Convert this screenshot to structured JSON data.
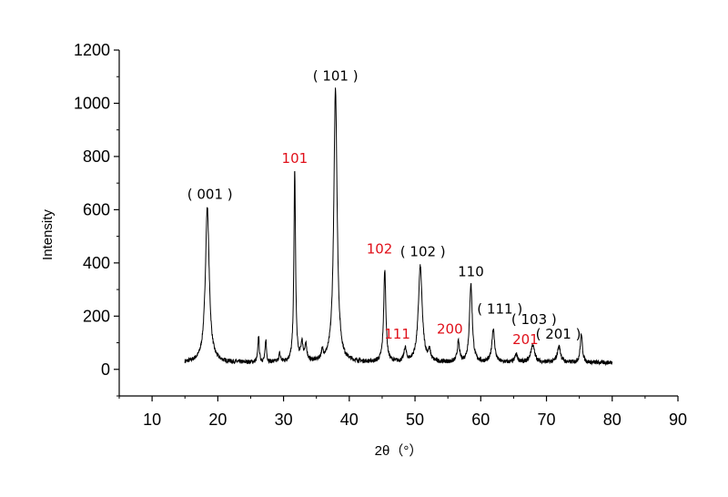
{
  "chart_data": {
    "type": "line",
    "title": "",
    "xlabel": "2θ（°）",
    "ylabel": "Intensity",
    "xlim": [
      5,
      90
    ],
    "ylim": [
      -100,
      1200
    ],
    "xticks": [
      10,
      20,
      30,
      40,
      50,
      60,
      70,
      80,
      90
    ],
    "yticks": [
      0,
      200,
      400,
      600,
      800,
      1000,
      1200
    ],
    "grid": false,
    "legend": "none",
    "line_color": "#000000",
    "background": 25,
    "baseline_range": [
      15,
      80
    ],
    "peaks": [
      {
        "x": 18.4,
        "y": 610,
        "w": 0.35
      },
      {
        "x": 26.2,
        "y": 125,
        "w": 0.12
      },
      {
        "x": 27.3,
        "y": 110,
        "w": 0.12
      },
      {
        "x": 29.4,
        "y": 55,
        "w": 0.15
      },
      {
        "x": 31.7,
        "y": 745,
        "w": 0.15
      },
      {
        "x": 32.8,
        "y": 90,
        "w": 0.2
      },
      {
        "x": 33.4,
        "y": 80,
        "w": 0.2
      },
      {
        "x": 35.9,
        "y": 55,
        "w": 0.2
      },
      {
        "x": 37.9,
        "y": 1055,
        "w": 0.3
      },
      {
        "x": 45.4,
        "y": 370,
        "w": 0.2
      },
      {
        "x": 48.5,
        "y": 75,
        "w": 0.2
      },
      {
        "x": 50.8,
        "y": 385,
        "w": 0.35
      },
      {
        "x": 52.2,
        "y": 60,
        "w": 0.2
      },
      {
        "x": 56.6,
        "y": 100,
        "w": 0.2
      },
      {
        "x": 58.5,
        "y": 320,
        "w": 0.25
      },
      {
        "x": 61.9,
        "y": 150,
        "w": 0.25
      },
      {
        "x": 65.4,
        "y": 55,
        "w": 0.25
      },
      {
        "x": 67.9,
        "y": 90,
        "w": 0.35
      },
      {
        "x": 71.9,
        "y": 85,
        "w": 0.3
      },
      {
        "x": 75.3,
        "y": 130,
        "w": 0.2
      }
    ],
    "annotations": [
      {
        "text": "( 001 )",
        "x": 18.8,
        "y": 640,
        "color": "#000000"
      },
      {
        "text": "101",
        "x": 31.7,
        "y": 775,
        "color": "#e0101a"
      },
      {
        "text": "( 101 )",
        "x": 37.9,
        "y": 1085,
        "color": "#000000"
      },
      {
        "text": "102",
        "x": 44.6,
        "y": 435,
        "color": "#e0101a"
      },
      {
        "text": "( 102 )",
        "x": 51.2,
        "y": 425,
        "color": "#000000"
      },
      {
        "text": "110",
        "x": 58.5,
        "y": 350,
        "color": "#000000"
      },
      {
        "text": "111",
        "x": 47.3,
        "y": 115,
        "color": "#e0101a"
      },
      {
        "text": "200",
        "x": 55.3,
        "y": 135,
        "color": "#e0101a"
      },
      {
        "text": "( 111 )",
        "x": 62.9,
        "y": 210,
        "color": "#000000"
      },
      {
        "text": "( 103 )",
        "x": 68.1,
        "y": 170,
        "color": "#000000"
      },
      {
        "text": "201",
        "x": 66.8,
        "y": 95,
        "color": "#e0101a"
      },
      {
        "text": "( 201 )",
        "x": 71.8,
        "y": 115,
        "color": "#000000"
      }
    ]
  }
}
